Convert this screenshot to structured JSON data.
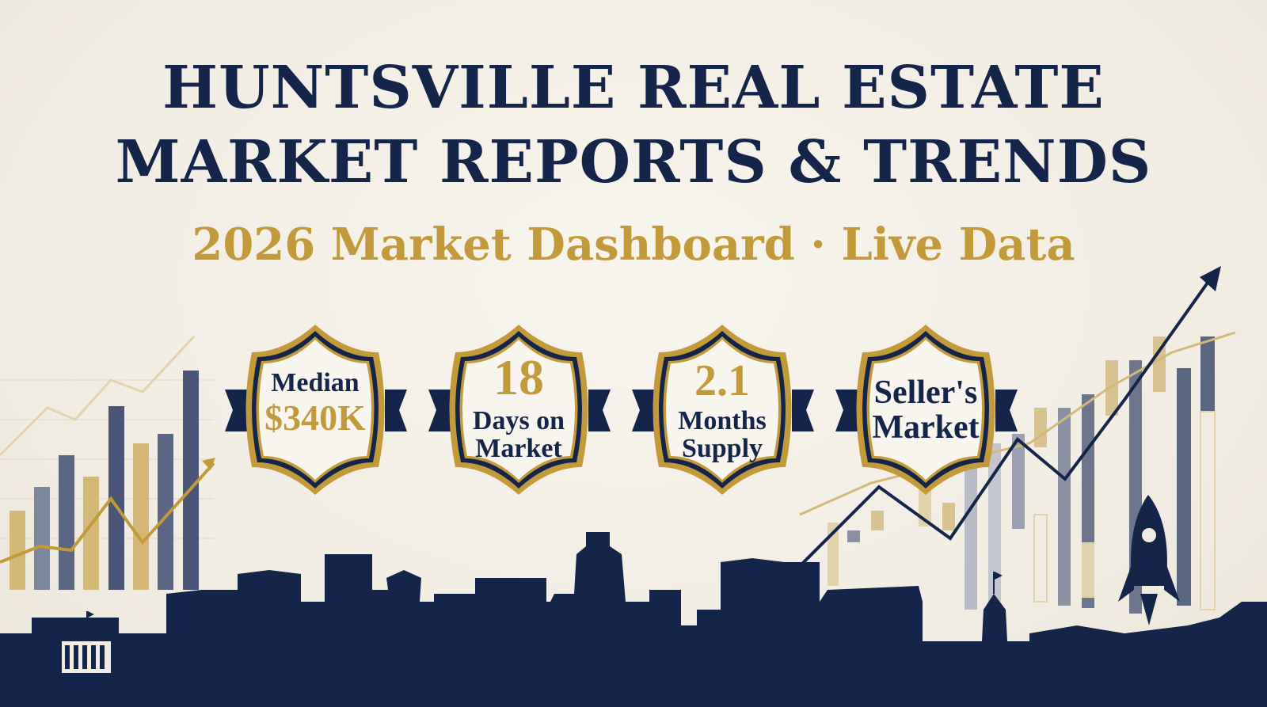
{
  "header": {
    "title_line1": "HUNTSVILLE REAL ESTATE",
    "title_line2": "MARKET REPORTS & TRENDS",
    "subtitle": "2026 Market Dashboard · Live Data"
  },
  "badges": [
    {
      "label": "Median",
      "value": "$340K"
    },
    {
      "value": "18",
      "label": "Days on Market",
      "label_l1": "Days on",
      "label_l2": "Market"
    },
    {
      "value": "2.1",
      "label": "Months Supply",
      "label_l1": "Months",
      "label_l2": "Supply"
    },
    {
      "label": "Seller's Market",
      "label_l1": "Seller's",
      "label_l2": "Market"
    }
  ],
  "colors": {
    "navy": "#15254a",
    "gold": "#c39a3b",
    "background": "#f3efe6"
  },
  "icons": [
    "trend-arrow-icon",
    "rocket-icon",
    "city-skyline",
    "capitol-building-icon"
  ]
}
